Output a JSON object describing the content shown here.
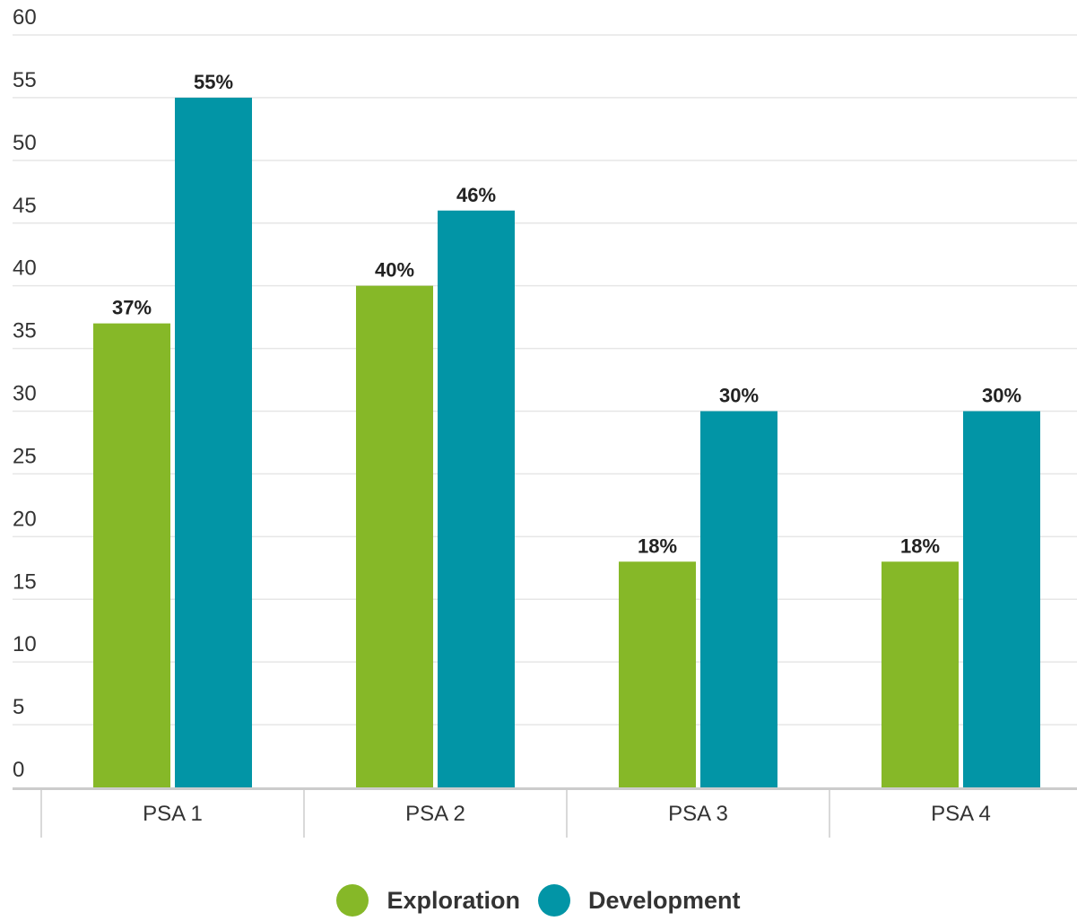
{
  "chart_data": {
    "type": "bar",
    "categories": [
      "PSA 1",
      "PSA 2",
      "PSA 3",
      "PSA 4"
    ],
    "series": [
      {
        "name": "Exploration",
        "values": [
          37,
          40,
          18,
          18
        ],
        "labels": [
          "37%",
          "40%",
          "18%",
          "18%"
        ],
        "color": "#86b828"
      },
      {
        "name": "Development",
        "values": [
          55,
          46,
          30,
          30
        ],
        "labels": [
          "55%",
          "46%",
          "30%",
          "30%"
        ],
        "color": "#0295a6"
      }
    ],
    "ylim": [
      0,
      60
    ],
    "yticks": [
      "0",
      "5",
      "10",
      "15",
      "20",
      "25",
      "30",
      "35",
      "40",
      "45",
      "50",
      "55",
      "60"
    ],
    "grid": true,
    "legend_position": "bottom-center"
  }
}
